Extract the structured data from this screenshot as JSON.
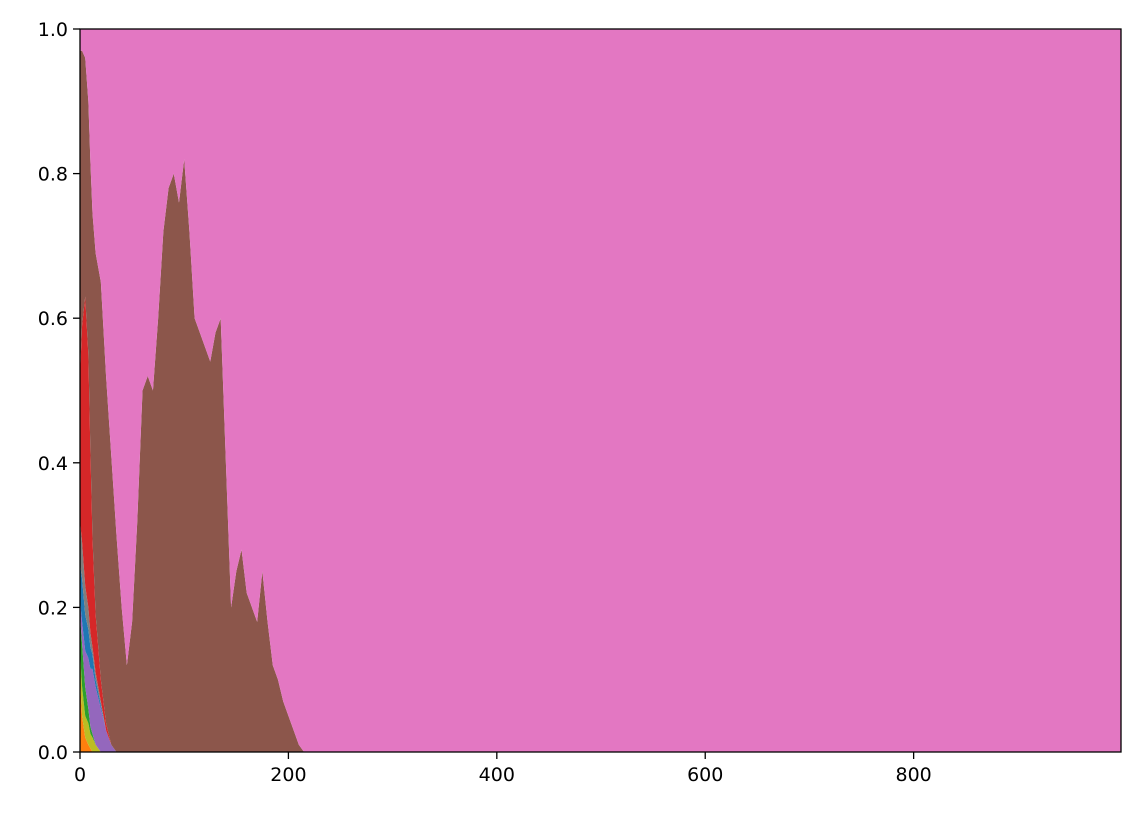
{
  "chart_data": {
    "type": "area",
    "stacked": true,
    "normalized": true,
    "title": "",
    "xlabel": "",
    "ylabel": "",
    "xlim": [
      0,
      999
    ],
    "ylim": [
      0,
      1
    ],
    "x_ticks": [
      0,
      200,
      400,
      600,
      800
    ],
    "x_tick_labels": [
      "0",
      "200",
      "400",
      "600",
      "800"
    ],
    "y_ticks": [
      0,
      0.2,
      0.4,
      0.6,
      0.8,
      1.0
    ],
    "y_tick_labels": [
      "0.0",
      "0.2",
      "0.4",
      "0.6",
      "0.8",
      "1.0"
    ],
    "grid": false,
    "legend": "none",
    "x": [
      0,
      2,
      5,
      8,
      10,
      12,
      15,
      20,
      25,
      30,
      35,
      40,
      45,
      50,
      55,
      60,
      65,
      70,
      75,
      80,
      85,
      90,
      95,
      100,
      105,
      110,
      115,
      120,
      125,
      130,
      135,
      140,
      145,
      150,
      155,
      160,
      165,
      170,
      175,
      180,
      185,
      190,
      195,
      200,
      205,
      210,
      215,
      220,
      300,
      400,
      600,
      800,
      999
    ],
    "series": [
      {
        "color": "#ff7f0e",
        "values": [
          0.1,
          0.05,
          0.02,
          0.01,
          0.005,
          0,
          0,
          0,
          0,
          0,
          0,
          0,
          0,
          0,
          0,
          0,
          0,
          0,
          0,
          0,
          0,
          0,
          0,
          0,
          0,
          0,
          0,
          0,
          0,
          0,
          0,
          0,
          0,
          0,
          0,
          0,
          0,
          0,
          0,
          0,
          0,
          0,
          0,
          0,
          0,
          0,
          0,
          0,
          0,
          0,
          0,
          0,
          0
        ]
      },
      {
        "color": "#bcbd22",
        "values": [
          0.04,
          0.04,
          0.03,
          0.03,
          0.02,
          0.02,
          0.01,
          0,
          0,
          0,
          0,
          0,
          0,
          0,
          0,
          0,
          0,
          0,
          0,
          0,
          0,
          0,
          0,
          0,
          0,
          0,
          0,
          0,
          0,
          0,
          0,
          0,
          0,
          0,
          0,
          0,
          0,
          0,
          0,
          0,
          0,
          0,
          0,
          0,
          0,
          0,
          0,
          0,
          0,
          0,
          0,
          0,
          0
        ]
      },
      {
        "color": "#2ca02c",
        "values": [
          0.05,
          0.06,
          0.04,
          0.02,
          0.01,
          0.005,
          0,
          0,
          0,
          0,
          0,
          0,
          0,
          0,
          0,
          0,
          0,
          0,
          0,
          0,
          0,
          0,
          0,
          0,
          0,
          0,
          0,
          0,
          0,
          0,
          0,
          0,
          0,
          0,
          0,
          0,
          0,
          0,
          0,
          0,
          0,
          0,
          0,
          0,
          0,
          0,
          0,
          0,
          0,
          0,
          0,
          0,
          0
        ]
      },
      {
        "color": "#9467bd",
        "values": [
          0.02,
          0.03,
          0.05,
          0.07,
          0.08,
          0.09,
          0.08,
          0.06,
          0.03,
          0.01,
          0,
          0,
          0,
          0,
          0,
          0,
          0,
          0,
          0,
          0,
          0,
          0,
          0,
          0,
          0,
          0,
          0,
          0,
          0,
          0,
          0,
          0,
          0,
          0,
          0,
          0,
          0,
          0,
          0,
          0,
          0,
          0,
          0,
          0,
          0,
          0,
          0,
          0,
          0,
          0,
          0,
          0,
          0
        ]
      },
      {
        "color": "#1f77b4",
        "values": [
          0.05,
          0.06,
          0.05,
          0.04,
          0.03,
          0.02,
          0.01,
          0.005,
          0,
          0,
          0,
          0,
          0,
          0,
          0,
          0,
          0,
          0,
          0,
          0,
          0,
          0,
          0,
          0,
          0,
          0,
          0,
          0,
          0,
          0,
          0,
          0,
          0,
          0,
          0,
          0,
          0,
          0,
          0,
          0,
          0,
          0,
          0,
          0,
          0,
          0,
          0,
          0,
          0,
          0,
          0,
          0,
          0
        ]
      },
      {
        "color": "#7f7f7f",
        "values": [
          0.06,
          0.05,
          0.04,
          0.03,
          0.02,
          0.01,
          0.01,
          0.005,
          0,
          0,
          0,
          0,
          0,
          0,
          0,
          0,
          0,
          0,
          0,
          0,
          0,
          0,
          0,
          0,
          0,
          0,
          0,
          0,
          0,
          0,
          0,
          0,
          0,
          0,
          0,
          0,
          0,
          0,
          0,
          0,
          0,
          0,
          0,
          0,
          0,
          0,
          0,
          0,
          0,
          0,
          0,
          0,
          0
        ]
      },
      {
        "color": "#d62728",
        "values": [
          0.2,
          0.3,
          0.4,
          0.35,
          0.25,
          0.15,
          0.08,
          0.03,
          0.01,
          0,
          0,
          0,
          0,
          0,
          0,
          0,
          0,
          0,
          0,
          0,
          0,
          0,
          0,
          0,
          0,
          0,
          0,
          0,
          0,
          0,
          0,
          0,
          0,
          0,
          0,
          0,
          0,
          0,
          0,
          0,
          0,
          0,
          0,
          0,
          0,
          0,
          0,
          0,
          0,
          0,
          0,
          0,
          0
        ]
      },
      {
        "color": "#8c564b",
        "values": [
          0.45,
          0.38,
          0.33,
          0.35,
          0.4,
          0.45,
          0.5,
          0.55,
          0.48,
          0.4,
          0.3,
          0.2,
          0.12,
          0.18,
          0.32,
          0.5,
          0.52,
          0.5,
          0.6,
          0.72,
          0.78,
          0.8,
          0.76,
          0.82,
          0.72,
          0.6,
          0.58,
          0.56,
          0.54,
          0.58,
          0.6,
          0.4,
          0.2,
          0.25,
          0.28,
          0.22,
          0.2,
          0.18,
          0.25,
          0.18,
          0.12,
          0.1,
          0.07,
          0.05,
          0.03,
          0.01,
          0,
          0,
          0,
          0,
          0,
          0,
          0
        ]
      },
      {
        "color": "#e377c2",
        "values": [
          0.03,
          0.03,
          0.04,
          0.13,
          0.185,
          0.255,
          0.31,
          0.35,
          0.48,
          0.59,
          0.7,
          0.8,
          0.88,
          0.82,
          0.68,
          0.5,
          0.48,
          0.5,
          0.4,
          0.28,
          0.22,
          0.2,
          0.24,
          0.18,
          0.28,
          0.4,
          0.42,
          0.44,
          0.46,
          0.42,
          0.4,
          0.6,
          0.8,
          0.75,
          0.72,
          0.78,
          0.8,
          0.82,
          0.75,
          0.82,
          0.88,
          0.9,
          0.93,
          0.95,
          0.97,
          0.99,
          1,
          1,
          1,
          1,
          1,
          1,
          1
        ]
      }
    ]
  }
}
